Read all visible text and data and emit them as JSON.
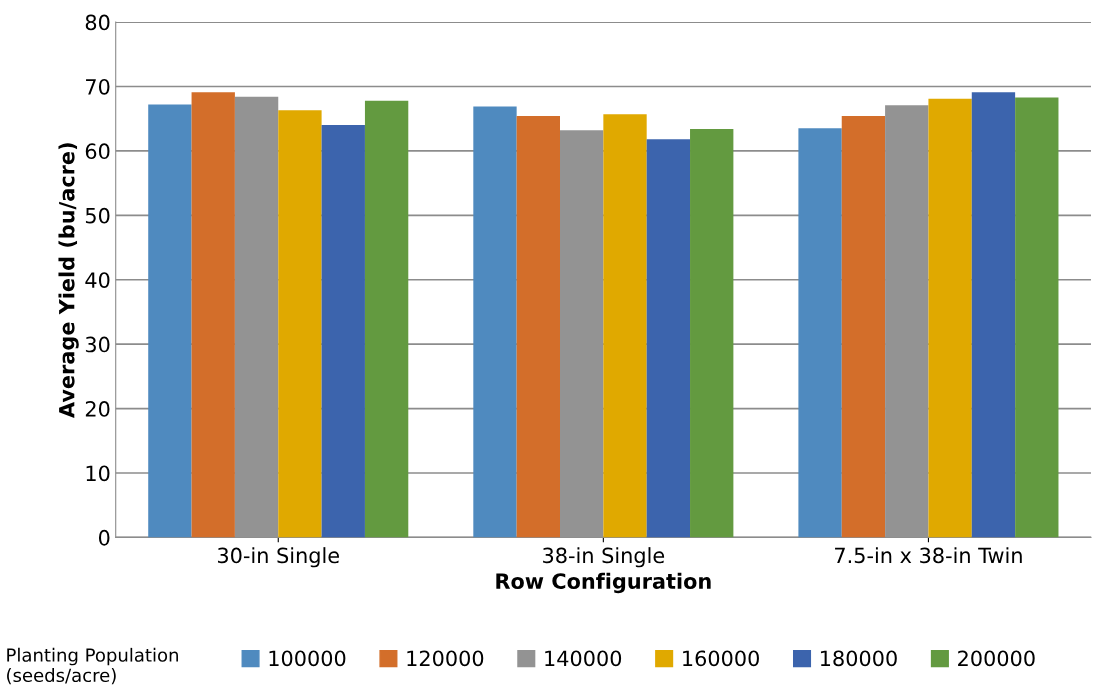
{
  "chart_data": {
    "type": "bar",
    "xlabel": "Row Configuration",
    "ylabel": "Average Yield (bu/acre)",
    "legend_title": "Planting Population\n(seeds/acre)",
    "categories": [
      "30-in Single",
      "38-in Single",
      "7.5-in x 38-in Twin"
    ],
    "ylim": [
      0,
      80
    ],
    "yticks": [
      0,
      10,
      20,
      30,
      40,
      50,
      60,
      70,
      80
    ],
    "grid": "y",
    "legend": "bottom",
    "series": [
      {
        "name": "100000",
        "color": "#4f8abf",
        "values": [
          67.2,
          66.9,
          63.5
        ]
      },
      {
        "name": "120000",
        "color": "#d36e2a",
        "values": [
          69.1,
          65.4,
          65.4
        ]
      },
      {
        "name": "140000",
        "color": "#939393",
        "values": [
          68.4,
          63.2,
          67.1
        ]
      },
      {
        "name": "160000",
        "color": "#e0a900",
        "values": [
          66.3,
          65.7,
          68.1
        ]
      },
      {
        "name": "180000",
        "color": "#3c64ad",
        "values": [
          64.0,
          61.8,
          69.1
        ]
      },
      {
        "name": "200000",
        "color": "#639a40",
        "values": [
          67.8,
          63.4,
          68.3
        ]
      }
    ]
  }
}
